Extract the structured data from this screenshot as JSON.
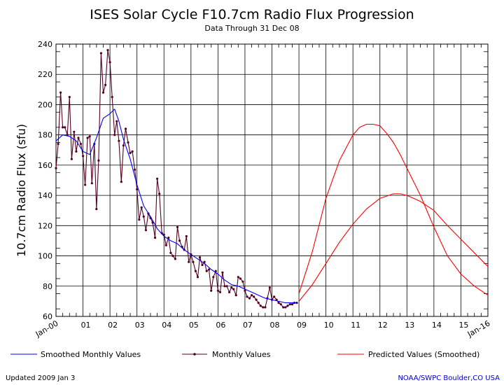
{
  "chart_data": {
    "type": "line",
    "title": "ISES Solar Cycle F10.7cm Radio Flux Progression",
    "subtitle": "Data Through 31 Dec 08",
    "ylabel": "10.7cm Radio Flux (sfu)",
    "xlabel": "",
    "ylim": [
      60,
      240
    ],
    "y_ticks": [
      60,
      80,
      100,
      120,
      140,
      160,
      180,
      200,
      220,
      240
    ],
    "x_range": [
      2000,
      2016
    ],
    "x_ticks": [
      {
        "year": 2000,
        "label": "Jan-00"
      },
      {
        "year": 2001,
        "label": "01"
      },
      {
        "year": 2002,
        "label": "02"
      },
      {
        "year": 2003,
        "label": "03"
      },
      {
        "year": 2004,
        "label": "04"
      },
      {
        "year": 2005,
        "label": "05"
      },
      {
        "year": 2006,
        "label": "06"
      },
      {
        "year": 2007,
        "label": "07"
      },
      {
        "year": 2008,
        "label": "08"
      },
      {
        "year": 2009,
        "label": "09"
      },
      {
        "year": 2010,
        "label": "10"
      },
      {
        "year": 2011,
        "label": "11"
      },
      {
        "year": 2012,
        "label": "12"
      },
      {
        "year": 2013,
        "label": "13"
      },
      {
        "year": 2014,
        "label": "14"
      },
      {
        "year": 2015,
        "label": "15"
      },
      {
        "year": 2016,
        "label": "Jan-16"
      }
    ],
    "grid": true,
    "series": [
      {
        "name": "Monthly Values",
        "color": "#550022",
        "marker": "dot",
        "x": [
          2000.0,
          2000.08,
          2000.17,
          2000.25,
          2000.33,
          2000.42,
          2000.5,
          2000.58,
          2000.67,
          2000.75,
          2000.83,
          2000.92,
          2001.0,
          2001.08,
          2001.17,
          2001.25,
          2001.33,
          2001.42,
          2001.5,
          2001.58,
          2001.67,
          2001.75,
          2001.83,
          2001.92,
          2002.0,
          2002.08,
          2002.17,
          2002.25,
          2002.33,
          2002.42,
          2002.5,
          2002.58,
          2002.67,
          2002.75,
          2002.83,
          2002.92,
          2003.0,
          2003.08,
          2003.17,
          2003.25,
          2003.33,
          2003.42,
          2003.5,
          2003.58,
          2003.67,
          2003.75,
          2003.83,
          2003.92,
          2004.0,
          2004.08,
          2004.17,
          2004.25,
          2004.33,
          2004.42,
          2004.5,
          2004.58,
          2004.67,
          2004.75,
          2004.83,
          2004.92,
          2005.0,
          2005.08,
          2005.17,
          2005.25,
          2005.33,
          2005.42,
          2005.5,
          2005.58,
          2005.67,
          2005.75,
          2005.83,
          2005.92,
          2006.0,
          2006.08,
          2006.17,
          2006.25,
          2006.33,
          2006.42,
          2006.5,
          2006.58,
          2006.67,
          2006.75,
          2006.83,
          2006.92,
          2007.0,
          2007.08,
          2007.17,
          2007.25,
          2007.33,
          2007.42,
          2007.5,
          2007.58,
          2007.67,
          2007.75,
          2007.83,
          2007.92,
          2008.0,
          2008.08,
          2008.17,
          2008.25,
          2008.33,
          2008.42,
          2008.5,
          2008.58,
          2008.67,
          2008.75,
          2008.83,
          2008.92
        ],
        "values": [
          158,
          174,
          208,
          185,
          185,
          180,
          205,
          164,
          182,
          169,
          178,
          174,
          166,
          147,
          178,
          179,
          148,
          174,
          131,
          163,
          234,
          208,
          213,
          236,
          228,
          205,
          180,
          189,
          176,
          149,
          173,
          184,
          175,
          168,
          169,
          157,
          144,
          124,
          132,
          126,
          117,
          128,
          125,
          122,
          112,
          151,
          141,
          115,
          114,
          107,
          112,
          102,
          100,
          98,
          119,
          110,
          106,
          104,
          113,
          96,
          101,
          96,
          90,
          86,
          99,
          94,
          96,
          90,
          91,
          77,
          86,
          90,
          77,
          76,
          89,
          80,
          80,
          76,
          79,
          78,
          74,
          86,
          85,
          83,
          77,
          73,
          72,
          74,
          73,
          71,
          69,
          67,
          66,
          66,
          72,
          79,
          71,
          73,
          71,
          69,
          68,
          66,
          66,
          67,
          68,
          68,
          69,
          69
        ]
      },
      {
        "name": "Smoothed Monthly Values",
        "color": "#0000ff",
        "x": [
          2000.0,
          2000.25,
          2000.5,
          2000.75,
          2001.0,
          2001.25,
          2001.5,
          2001.75,
          2002.0,
          2002.17,
          2002.33,
          2002.5,
          2002.75,
          2003.0,
          2003.25,
          2003.5,
          2003.75,
          2004.0,
          2004.25,
          2004.5,
          2004.75,
          2005.0,
          2005.25,
          2005.5,
          2005.75,
          2006.0,
          2006.25,
          2006.5,
          2006.75,
          2007.0,
          2007.25,
          2007.5,
          2007.75,
          2008.0,
          2008.25,
          2008.5,
          2008.75,
          2008.92
        ],
        "values": [
          176,
          180,
          179,
          176,
          169,
          167,
          178,
          191,
          194,
          197,
          189,
          177,
          164,
          147,
          133,
          126,
          118,
          113,
          110,
          108,
          104,
          101,
          98,
          95,
          91,
          88,
          84,
          81,
          80,
          78,
          76,
          74,
          72,
          71,
          70,
          69,
          69,
          69
        ]
      },
      {
        "name": "Predicted Values (Smoothed)",
        "color": "#ff0000",
        "band": "upper",
        "x": [
          2009.0,
          2009.5,
          2010.0,
          2010.5,
          2011.0,
          2011.25,
          2011.5,
          2011.75,
          2012.0,
          2012.25,
          2012.5,
          2012.75,
          2013.0,
          2013.5,
          2014.0,
          2014.5,
          2015.0,
          2015.5,
          2016.0
        ],
        "values": [
          75,
          103,
          138,
          163,
          180,
          185,
          187,
          187,
          186,
          181,
          175,
          167,
          158,
          140,
          119,
          100,
          88,
          80,
          74
        ]
      },
      {
        "name": "Predicted Values (Smoothed)",
        "color": "#ff0000",
        "band": "lower",
        "x": [
          2009.0,
          2009.5,
          2010.0,
          2010.5,
          2011.0,
          2011.5,
          2012.0,
          2012.5,
          2012.75,
          2013.0,
          2013.5,
          2014.0,
          2014.5,
          2015.0,
          2015.5,
          2016.0
        ],
        "values": [
          70,
          81,
          95,
          109,
          121,
          131,
          138,
          141,
          141,
          140,
          136,
          130,
          120,
          111,
          102,
          93
        ]
      }
    ],
    "legend": {
      "placement": "bottom",
      "entries": [
        {
          "label": "Smoothed Monthly Values",
          "color": "#0000ff",
          "marker": "none"
        },
        {
          "label": "Monthly Values",
          "color": "#550022",
          "marker": "dot"
        },
        {
          "label": "Predicted Values (Smoothed)",
          "color": "#ff0000",
          "marker": "none"
        }
      ]
    }
  },
  "footer": {
    "updated": "Updated 2009 Jan  3",
    "credit": "NOAA/SWPC Boulder,CO USA",
    "credit_color": "#0000cc"
  }
}
